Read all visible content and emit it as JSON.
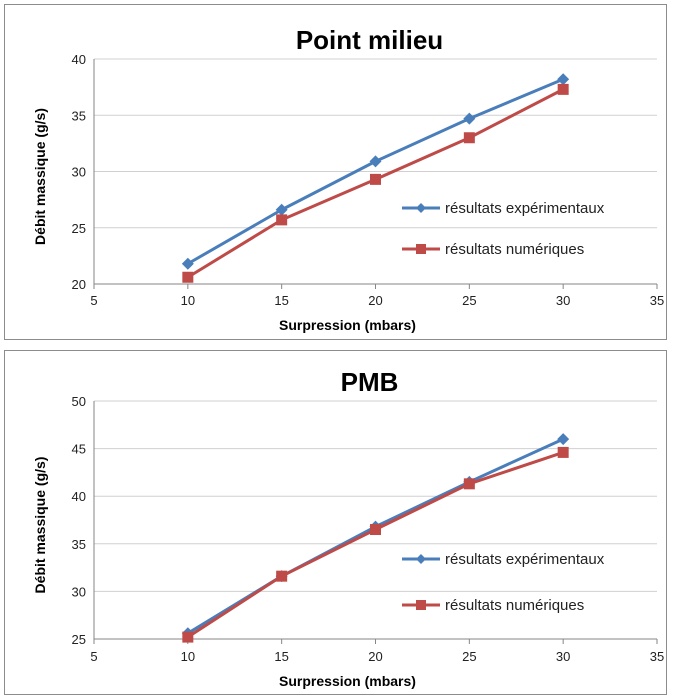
{
  "chart_data": [
    {
      "type": "line",
      "title": "Point milieu",
      "xlabel": "Surpression (mbars)",
      "ylabel": "Débit massique (g/s)",
      "xlim": [
        5,
        35
      ],
      "ylim": [
        20,
        40
      ],
      "xticks": [
        5,
        10,
        15,
        20,
        25,
        30,
        35
      ],
      "yticks": [
        20,
        25,
        30,
        35,
        40
      ],
      "grid": "horizontal",
      "legend_position": "right",
      "series": [
        {
          "name": "résultats expérimentaux",
          "color": "#4a7ebb",
          "marker": "diamond",
          "x": [
            10,
            15,
            20,
            25,
            30
          ],
          "y": [
            21.8,
            26.6,
            30.9,
            34.7,
            38.2
          ]
        },
        {
          "name": "résultats numériques",
          "color": "#be4b48",
          "marker": "square",
          "x": [
            10,
            15,
            20,
            25,
            30
          ],
          "y": [
            20.6,
            25.7,
            29.3,
            33.0,
            37.3
          ]
        }
      ]
    },
    {
      "type": "line",
      "title": "PMB",
      "xlabel": "Surpression (mbars)",
      "ylabel": "Débit massique (g/s)",
      "xlim": [
        5,
        35
      ],
      "ylim": [
        25,
        50
      ],
      "xticks": [
        5,
        10,
        15,
        20,
        25,
        30,
        35
      ],
      "yticks": [
        25,
        30,
        35,
        40,
        45,
        50
      ],
      "grid": "horizontal",
      "legend_position": "right",
      "series": [
        {
          "name": "résultats expérimentaux",
          "color": "#4a7ebb",
          "marker": "diamond",
          "x": [
            10,
            15,
            20,
            25,
            30
          ],
          "y": [
            25.6,
            31.6,
            36.8,
            41.5,
            46.0
          ]
        },
        {
          "name": "résultats numériques",
          "color": "#be4b48",
          "marker": "square",
          "x": [
            10,
            15,
            20,
            25,
            30
          ],
          "y": [
            25.2,
            31.6,
            36.5,
            41.3,
            44.6
          ]
        }
      ]
    }
  ]
}
